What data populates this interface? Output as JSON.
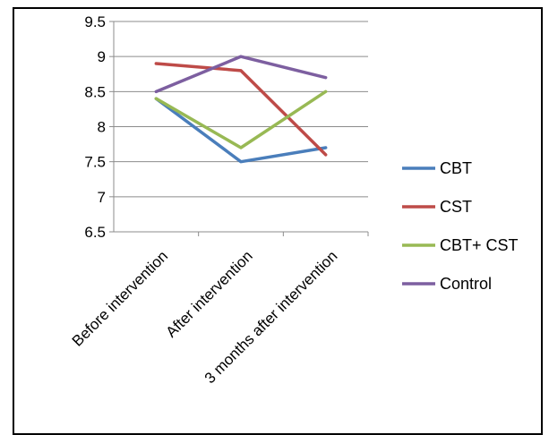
{
  "chart_data": {
    "type": "line",
    "categories": [
      "Before intervention",
      "After intervention",
      "3 months after intervention"
    ],
    "series": [
      {
        "name": "CBT",
        "values": [
          8.4,
          7.5,
          7.7
        ],
        "color": "#4a7ebb"
      },
      {
        "name": "CST",
        "values": [
          8.9,
          8.8,
          7.6
        ],
        "color": "#be4b48"
      },
      {
        "name": "CBT+ CST",
        "values": [
          8.4,
          7.7,
          8.5
        ],
        "color": "#98b954"
      },
      {
        "name": "Control",
        "values": [
          8.5,
          9.0,
          8.7
        ],
        "color": "#7d5fa0"
      }
    ],
    "yticks": [
      "6.5",
      "7",
      "7.5",
      "8",
      "8.5",
      "9",
      "9.5"
    ],
    "ylim": [
      6.5,
      9.5
    ],
    "grid": true,
    "legend_position": "right"
  }
}
